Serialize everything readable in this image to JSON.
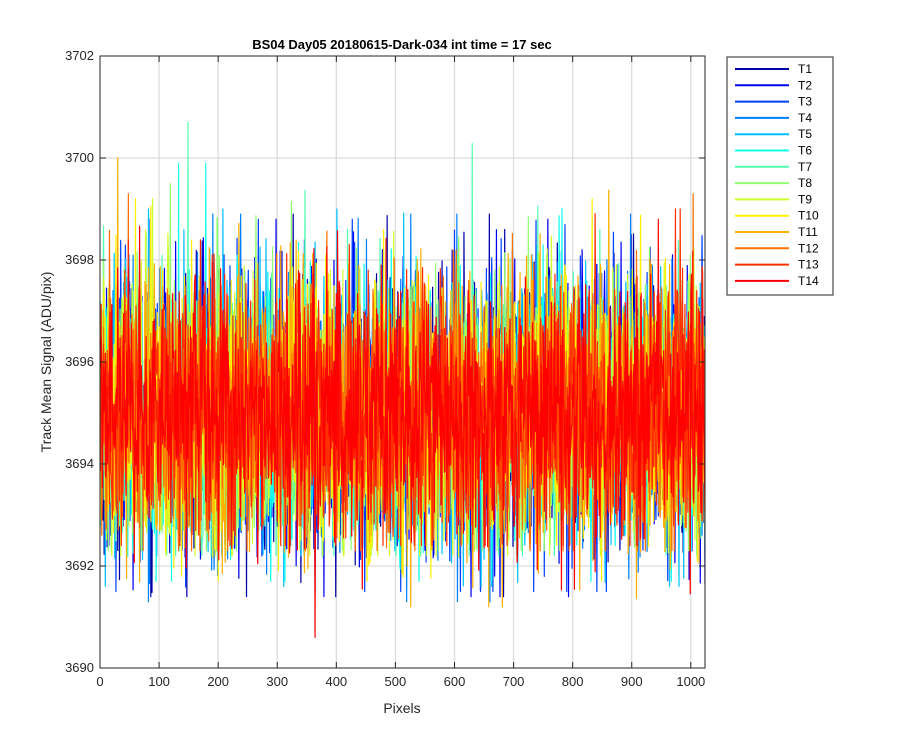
{
  "chart_data": {
    "type": "line",
    "title": "BS04 Day05 20180615-Dark-034 int time = 17 sec",
    "xlabel": "Pixels",
    "ylabel": "Track Mean Signal (ADU/pix)",
    "xlim": [
      0,
      1024
    ],
    "ylim": [
      3690,
      3702
    ],
    "x_ticks": [
      0,
      100,
      200,
      300,
      400,
      500,
      600,
      700,
      800,
      900,
      1000
    ],
    "y_ticks": [
      3690,
      3692,
      3694,
      3696,
      3698,
      3700,
      3702
    ],
    "grid": true,
    "legend_position": "outside-top-right",
    "x_range": [
      1,
      1024
    ],
    "series": [
      {
        "name": "T1",
        "color": "#0000a8",
        "mean": 3695.0,
        "std": 1.3,
        "min": 3691.4,
        "max": 3698.9
      },
      {
        "name": "T2",
        "color": "#0000f0",
        "mean": 3695.0,
        "std": 1.3,
        "min": 3691.4,
        "max": 3698.8
      },
      {
        "name": "T3",
        "color": "#0040ff",
        "mean": 3695.0,
        "std": 1.3,
        "min": 3691.5,
        "max": 3698.8
      },
      {
        "name": "T4",
        "color": "#0080ff",
        "mean": 3695.0,
        "std": 1.3,
        "min": 3691.3,
        "max": 3698.9
      },
      {
        "name": "T5",
        "color": "#00c0ff",
        "mean": 3695.0,
        "std": 1.3,
        "min": 3691.6,
        "max": 3699.0
      },
      {
        "name": "T6",
        "color": "#10ffef",
        "mean": 3695.0,
        "std": 1.3,
        "min": 3691.7,
        "max": 3699.9
      },
      {
        "name": "T7",
        "color": "#50ffaf",
        "mean": 3695.0,
        "std": 1.3,
        "min": 3692.2,
        "max": 3700.7
      },
      {
        "name": "T8",
        "color": "#90ff6f",
        "mean": 3695.0,
        "std": 1.3,
        "min": 3692.3,
        "max": 3699.5
      },
      {
        "name": "T9",
        "color": "#d0ff2f",
        "mean": 3695.0,
        "std": 1.3,
        "min": 3692.2,
        "max": 3699.2
      },
      {
        "name": "T10",
        "color": "#ffef00",
        "mean": 3695.0,
        "std": 1.3,
        "min": 3691.7,
        "max": 3699.2
      },
      {
        "name": "T11",
        "color": "#ffaf00",
        "mean": 3695.0,
        "std": 1.3,
        "min": 3691.2,
        "max": 3700.0
      },
      {
        "name": "T12",
        "color": "#ff6f00",
        "mean": 3695.0,
        "std": 1.3,
        "min": 3692.3,
        "max": 3699.3
      },
      {
        "name": "T13",
        "color": "#ff2f00",
        "mean": 3695.0,
        "std": 1.3,
        "min": 3692.4,
        "max": 3699.0
      },
      {
        "name": "T14",
        "color": "#ff0000",
        "mean": 3695.0,
        "std": 1.2,
        "min": 3690.6,
        "max": 3698.8
      }
    ]
  }
}
